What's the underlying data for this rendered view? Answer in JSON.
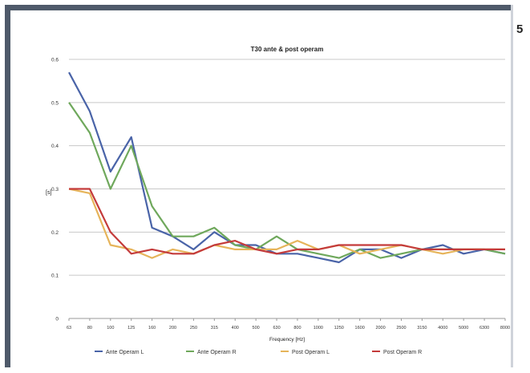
{
  "page_number": "5",
  "chart_data": {
    "type": "line",
    "title": "T30 ante & post operam",
    "xlabel": "Frequency [Hz]",
    "ylabel": "[s]",
    "categories": [
      "63",
      "80",
      "100",
      "125",
      "160",
      "200",
      "250",
      "315",
      "400",
      "500",
      "630",
      "800",
      "1000",
      "1250",
      "1600",
      "2000",
      "2500",
      "3150",
      "4000",
      "5000",
      "6300",
      "8000"
    ],
    "ylim": [
      0,
      0.6
    ],
    "yticks": [
      "0",
      "0.1",
      "0.2",
      "0.3",
      "0.4",
      "0.5",
      "0.6"
    ],
    "grid": "horizontal",
    "legend_position": "bottom",
    "series": [
      {
        "name": "Ante Operam L",
        "color": "#4a64a8",
        "values": [
          0.57,
          0.48,
          0.34,
          0.42,
          0.21,
          0.19,
          0.16,
          0.2,
          0.17,
          0.17,
          0.15,
          0.15,
          0.14,
          0.13,
          0.16,
          0.16,
          0.14,
          0.16,
          0.17,
          0.15,
          0.16,
          0.15
        ]
      },
      {
        "name": "Ante Operam R",
        "color": "#6fa85c",
        "values": [
          0.5,
          0.43,
          0.3,
          0.4,
          0.26,
          0.19,
          0.19,
          0.21,
          0.17,
          0.16,
          0.19,
          0.16,
          0.15,
          0.14,
          0.16,
          0.14,
          0.15,
          0.16,
          0.16,
          0.16,
          0.16,
          0.15
        ]
      },
      {
        "name": "Post Operam L",
        "color": "#e6b45a",
        "values": [
          0.3,
          0.29,
          0.17,
          0.16,
          0.14,
          0.16,
          0.15,
          0.17,
          0.16,
          0.16,
          0.16,
          0.18,
          0.16,
          0.17,
          0.15,
          0.16,
          0.17,
          0.16,
          0.15,
          0.16,
          0.16,
          0.16
        ]
      },
      {
        "name": "Post Operam R",
        "color": "#c43b3b",
        "values": [
          0.3,
          0.3,
          0.2,
          0.15,
          0.16,
          0.15,
          0.15,
          0.17,
          0.18,
          0.16,
          0.15,
          0.16,
          0.16,
          0.17,
          0.17,
          0.17,
          0.17,
          0.16,
          0.16,
          0.16,
          0.16,
          0.16
        ]
      }
    ]
  }
}
